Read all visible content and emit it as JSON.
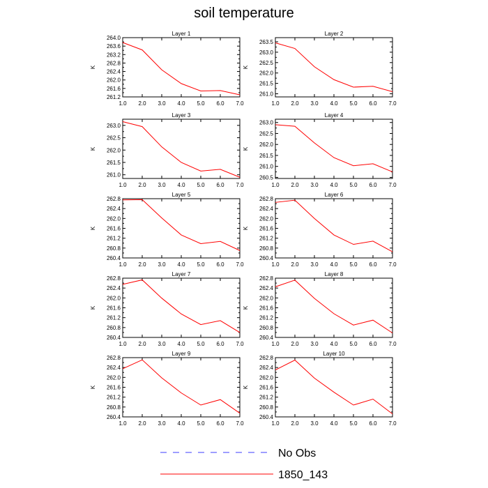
{
  "title": "soil temperature",
  "colors": {
    "model": "#ff0000",
    "obs": "#3c3cff",
    "axis": "#000000"
  },
  "legend": {
    "obs_label": "No Obs",
    "model_label": "1850_143"
  },
  "chart_data": [
    {
      "type": "line",
      "title": "Layer 1",
      "ylabel": "K",
      "x": [
        1,
        2,
        3,
        4,
        5,
        6,
        7
      ],
      "xticks": [
        "1.0",
        "2.0",
        "3.0",
        "4.0",
        "5.0",
        "6.0",
        "7.0"
      ],
      "xlim": [
        1,
        7
      ],
      "ylim": [
        261.2,
        264.0
      ],
      "yticks": [
        "261.2",
        "261.6",
        "262.0",
        "262.4",
        "262.8",
        "263.2",
        "263.6",
        "264.0"
      ],
      "series": [
        {
          "name": "1850_143",
          "values": [
            263.77,
            263.42,
            262.48,
            261.83,
            261.48,
            261.5,
            261.3
          ]
        }
      ]
    },
    {
      "type": "line",
      "title": "Layer 2",
      "ylabel": "K",
      "x": [
        1,
        2,
        3,
        4,
        5,
        6,
        7
      ],
      "xticks": [
        "1.0",
        "2.0",
        "3.0",
        "4.0",
        "5.0",
        "6.0",
        "7.0"
      ],
      "xlim": [
        1,
        7
      ],
      "ylim": [
        260.85,
        263.7
      ],
      "yticks": [
        "261.0",
        "261.5",
        "262.0",
        "262.5",
        "263.0",
        "263.5"
      ],
      "series": [
        {
          "name": "1850_143",
          "values": [
            263.45,
            263.18,
            262.3,
            261.68,
            261.32,
            261.36,
            261.1
          ]
        }
      ]
    },
    {
      "type": "line",
      "title": "Layer 3",
      "ylabel": "K",
      "x": [
        1,
        2,
        3,
        4,
        5,
        6,
        7
      ],
      "xticks": [
        "1.0",
        "2.0",
        "3.0",
        "4.0",
        "5.0",
        "6.0",
        "7.0"
      ],
      "xlim": [
        1,
        7
      ],
      "ylim": [
        260.85,
        263.25
      ],
      "yticks": [
        "261.0",
        "261.5",
        "262.0",
        "262.5",
        "263.0"
      ],
      "series": [
        {
          "name": "1850_143",
          "values": [
            263.15,
            262.95,
            262.13,
            261.5,
            261.15,
            261.22,
            260.9
          ]
        }
      ]
    },
    {
      "type": "line",
      "title": "Layer 4",
      "ylabel": "K",
      "x": [
        1,
        2,
        3,
        4,
        5,
        6,
        7
      ],
      "xticks": [
        "1.0",
        "2.0",
        "3.0",
        "4.0",
        "5.0",
        "6.0",
        "7.0"
      ],
      "xlim": [
        1,
        7
      ],
      "ylim": [
        260.45,
        263.15
      ],
      "yticks": [
        "260.5",
        "261.0",
        "261.5",
        "262.0",
        "262.5",
        "263.0"
      ],
      "series": [
        {
          "name": "1850_143",
          "values": [
            262.9,
            262.83,
            262.07,
            261.4,
            261.03,
            261.12,
            260.75
          ]
        }
      ]
    },
    {
      "type": "line",
      "title": "Layer 5",
      "ylabel": "K",
      "x": [
        1,
        2,
        3,
        4,
        5,
        6,
        7
      ],
      "xticks": [
        "1.0",
        "2.0",
        "3.0",
        "4.0",
        "5.0",
        "6.0",
        "7.0"
      ],
      "xlim": [
        1,
        7
      ],
      "ylim": [
        260.4,
        262.8
      ],
      "yticks": [
        "260.4",
        "260.8",
        "261.2",
        "261.6",
        "262.0",
        "262.4",
        "262.8"
      ],
      "series": [
        {
          "name": "1850_143",
          "values": [
            262.75,
            262.76,
            262.02,
            261.33,
            260.98,
            261.07,
            260.7
          ]
        }
      ]
    },
    {
      "type": "line",
      "title": "Layer 6",
      "ylabel": "K",
      "x": [
        1,
        2,
        3,
        4,
        5,
        6,
        7
      ],
      "xticks": [
        "1.0",
        "2.0",
        "3.0",
        "4.0",
        "5.0",
        "6.0",
        "7.0"
      ],
      "xlim": [
        1,
        7
      ],
      "ylim": [
        260.4,
        262.8
      ],
      "yticks": [
        "260.4",
        "260.8",
        "261.2",
        "261.6",
        "262.0",
        "262.4",
        "262.8"
      ],
      "series": [
        {
          "name": "1850_143",
          "values": [
            262.65,
            262.74,
            262.0,
            261.33,
            260.95,
            261.08,
            260.65
          ]
        }
      ]
    },
    {
      "type": "line",
      "title": "Layer 7",
      "ylabel": "K",
      "x": [
        1,
        2,
        3,
        4,
        5,
        6,
        7
      ],
      "xticks": [
        "1.0",
        "2.0",
        "3.0",
        "4.0",
        "5.0",
        "6.0",
        "7.0"
      ],
      "xlim": [
        1,
        7
      ],
      "ylim": [
        260.4,
        262.8
      ],
      "yticks": [
        "260.4",
        "260.8",
        "261.2",
        "261.6",
        "262.0",
        "262.4",
        "262.8"
      ],
      "series": [
        {
          "name": "1850_143",
          "values": [
            262.55,
            262.73,
            261.99,
            261.35,
            260.92,
            261.08,
            260.6
          ]
        }
      ]
    },
    {
      "type": "line",
      "title": "Layer 8",
      "ylabel": "K",
      "x": [
        1,
        2,
        3,
        4,
        5,
        6,
        7
      ],
      "xticks": [
        "1.0",
        "2.0",
        "3.0",
        "4.0",
        "5.0",
        "6.0",
        "7.0"
      ],
      "xlim": [
        1,
        7
      ],
      "ylim": [
        260.4,
        262.8
      ],
      "yticks": [
        "260.4",
        "260.8",
        "261.2",
        "261.6",
        "262.0",
        "262.4",
        "262.8"
      ],
      "series": [
        {
          "name": "1850_143",
          "values": [
            262.45,
            262.72,
            261.98,
            261.36,
            260.9,
            261.1,
            260.58
          ]
        }
      ]
    },
    {
      "type": "line",
      "title": "Layer 9",
      "ylabel": "K",
      "x": [
        1,
        2,
        3,
        4,
        5,
        6,
        7
      ],
      "xticks": [
        "1.0",
        "2.0",
        "3.0",
        "4.0",
        "5.0",
        "6.0",
        "7.0"
      ],
      "xlim": [
        1,
        7
      ],
      "ylim": [
        260.4,
        262.8
      ],
      "yticks": [
        "260.4",
        "260.8",
        "261.2",
        "261.6",
        "262.0",
        "262.4",
        "262.8"
      ],
      "series": [
        {
          "name": "1850_143",
          "values": [
            262.35,
            262.71,
            261.98,
            261.37,
            260.88,
            261.1,
            260.55
          ]
        }
      ]
    },
    {
      "type": "line",
      "title": "Layer 10",
      "ylabel": "K",
      "x": [
        1,
        2,
        3,
        4,
        5,
        6,
        7
      ],
      "xticks": [
        "1.0",
        "2.0",
        "3.0",
        "4.0",
        "5.0",
        "6.0",
        "7.0"
      ],
      "xlim": [
        1,
        7
      ],
      "ylim": [
        260.4,
        262.8
      ],
      "yticks": [
        "260.4",
        "260.8",
        "261.2",
        "261.6",
        "262.0",
        "262.4",
        "262.8"
      ],
      "series": [
        {
          "name": "1850_143",
          "values": [
            262.3,
            262.7,
            261.97,
            261.4,
            260.88,
            261.12,
            260.52
          ]
        }
      ]
    }
  ]
}
